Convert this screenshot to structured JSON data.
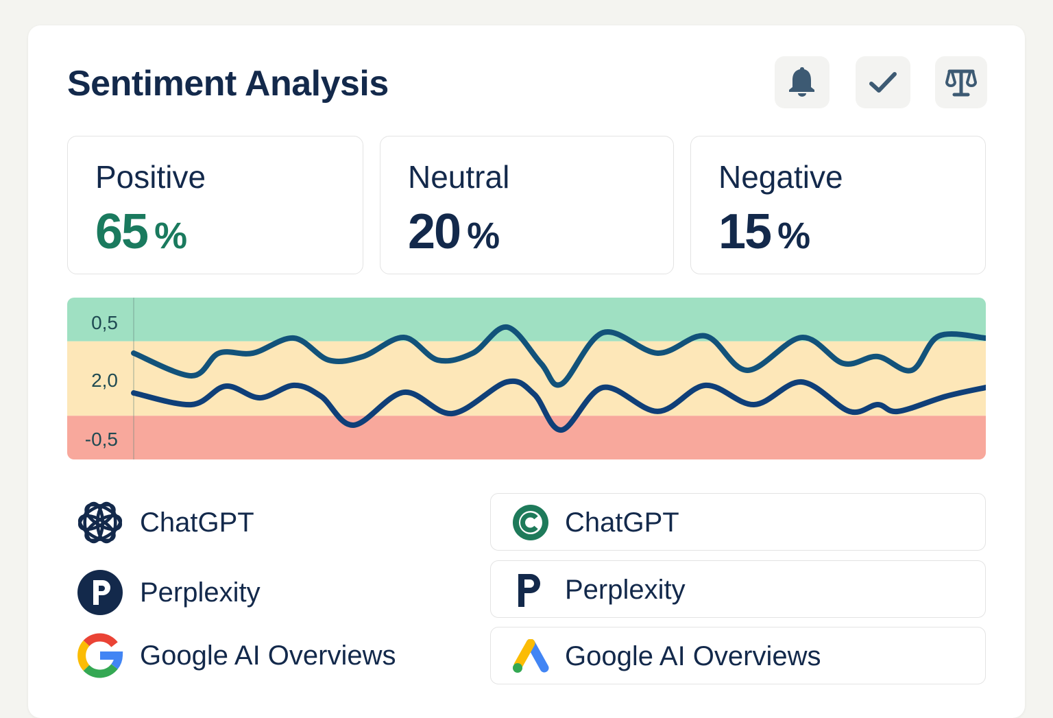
{
  "header": {
    "title": "Sentiment Analysis",
    "icons": [
      "bell-icon",
      "check-icon",
      "scale-icon"
    ]
  },
  "stats": [
    {
      "label": "Positive",
      "value": "65",
      "unit": "%",
      "color": "#1a7a5e"
    },
    {
      "label": "Neutral",
      "value": "20",
      "unit": "%",
      "color": "#13294b"
    },
    {
      "label": "Negative",
      "value": "15",
      "unit": "%",
      "color": "#13294b"
    }
  ],
  "chart_data": {
    "type": "line",
    "title": "",
    "y_tick_labels": [
      "0,5",
      "2,0",
      "-0,5"
    ],
    "bands": [
      {
        "name": "positive",
        "color": "#9fe0c2"
      },
      {
        "name": "neutral",
        "color": "#fde7b8"
      },
      {
        "name": "negative",
        "color": "#f8a89c"
      }
    ],
    "band_bounds": [
      0.27,
      0.73
    ],
    "ylim": [
      0,
      1
    ],
    "xlim": [
      0,
      100
    ],
    "series": [
      {
        "name": "series-1",
        "color": "#12527a",
        "x": [
          0,
          6.8,
          10,
          14,
          18.8,
          22.9,
          26.9,
          31.7,
          35.7,
          39.8,
          43.8,
          47.8,
          50.2,
          55.1,
          61.5,
          67.1,
          72,
          78.4,
          83.3,
          87.3,
          91.3,
          94.5,
          100
        ],
        "y": [
          0.657,
          0.517,
          0.657,
          0.657,
          0.75,
          0.614,
          0.636,
          0.754,
          0.614,
          0.657,
          0.818,
          0.593,
          0.466,
          0.784,
          0.657,
          0.763,
          0.551,
          0.754,
          0.593,
          0.636,
          0.551,
          0.763,
          0.75
        ]
      },
      {
        "name": "series-2",
        "color": "#0f3f78",
        "x": [
          0,
          6.8,
          10.8,
          14.8,
          18.8,
          22,
          25.8,
          31.7,
          37.4,
          43.8,
          47,
          50.2,
          55.1,
          61.5,
          67.1,
          72.8,
          78.4,
          84,
          87.3,
          89.7,
          95.3,
          100
        ],
        "y": [
          0.411,
          0.339,
          0.453,
          0.381,
          0.458,
          0.39,
          0.212,
          0.415,
          0.284,
          0.479,
          0.403,
          0.182,
          0.445,
          0.297,
          0.458,
          0.339,
          0.479,
          0.297,
          0.339,
          0.297,
          0.39,
          0.445
        ]
      }
    ]
  },
  "sources_left": [
    {
      "name": "ChatGPT",
      "icon": "openai-icon"
    },
    {
      "name": "Perplexity",
      "icon": "perplexity-icon"
    },
    {
      "name": "Google AI Overviews",
      "icon": "google-icon"
    }
  ],
  "sources_right": [
    {
      "name": "ChatGPT",
      "icon": "chatgpt-c-icon"
    },
    {
      "name": "Perplexity",
      "icon": "perplexity-p-icon"
    },
    {
      "name": "Google AI Overviews",
      "icon": "google-ads-icon"
    }
  ]
}
